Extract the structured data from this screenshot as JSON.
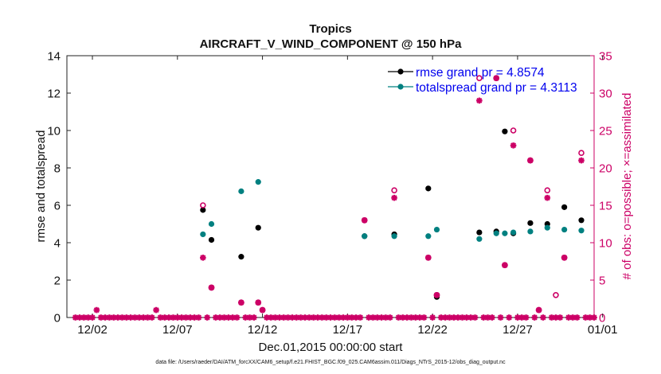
{
  "chart_data": {
    "type": "scatter",
    "title": "Tropics",
    "subtitle": "AIRCRAFT_V_WIND_COMPONENT @ 150 hPa",
    "xlabel": "Dec.01,2015 00:00:00 start",
    "ylabel_left": "rmse and totalspread",
    "ylabel_right": "# of obs: o=possible; ×=assimilated",
    "ylim_left": [
      0,
      14
    ],
    "ylim_right": [
      0,
      35
    ],
    "xlim": [
      0.5,
      31.5
    ],
    "yticks_left": [
      0,
      2,
      4,
      6,
      8,
      10,
      12,
      14
    ],
    "yticks_right": [
      0,
      5,
      10,
      15,
      20,
      25,
      30,
      35
    ],
    "xticks": [
      {
        "x": 2,
        "label": "12/02"
      },
      {
        "x": 7,
        "label": "12/07"
      },
      {
        "x": 12,
        "label": "12/12"
      },
      {
        "x": 17,
        "label": "12/17"
      },
      {
        "x": 22,
        "label": "12/22"
      },
      {
        "x": 27,
        "label": "12/27"
      },
      {
        "x": 32,
        "label": "01/01"
      }
    ],
    "legend": {
      "placement": "top-right",
      "entries": [
        "rmse grand pr = 4.8574",
        "totalspread grand pr = 4.3113"
      ]
    },
    "series": [
      {
        "name": "rmse",
        "axis": "left",
        "color": "#000000",
        "points": [
          [
            8.5,
            5.75
          ],
          [
            9.0,
            4.15
          ],
          [
            10.75,
            3.25
          ],
          [
            11.75,
            4.8
          ],
          [
            18.0,
            4.35
          ],
          [
            19.75,
            4.45
          ],
          [
            21.75,
            6.9
          ],
          [
            22.25,
            1.1
          ],
          [
            24.75,
            4.55
          ],
          [
            25.75,
            4.6
          ],
          [
            26.25,
            9.95
          ],
          [
            26.75,
            4.5
          ],
          [
            27.75,
            5.05
          ],
          [
            28.75,
            5.0
          ],
          [
            29.75,
            5.9
          ],
          [
            30.75,
            5.2
          ]
        ]
      },
      {
        "name": "totalspread",
        "axis": "left",
        "color": "#008080",
        "points": [
          [
            8.5,
            4.45
          ],
          [
            9.0,
            5.0
          ],
          [
            10.75,
            6.75
          ],
          [
            11.75,
            7.25
          ],
          [
            18.0,
            4.35
          ],
          [
            19.75,
            4.35
          ],
          [
            21.75,
            4.35
          ],
          [
            22.25,
            4.7
          ],
          [
            24.75,
            4.2
          ],
          [
            25.75,
            4.5
          ],
          [
            26.25,
            4.5
          ],
          [
            26.75,
            4.55
          ],
          [
            27.75,
            4.6
          ],
          [
            28.75,
            4.8
          ],
          [
            29.75,
            4.7
          ],
          [
            30.75,
            4.65
          ]
        ]
      },
      {
        "name": "obs possible",
        "axis": "right",
        "color": "#cc0066",
        "points": [
          [
            8.5,
            15
          ],
          [
            9.0,
            4
          ],
          [
            10.75,
            2
          ],
          [
            11.75,
            2
          ],
          [
            12.0,
            1
          ],
          [
            18.0,
            13
          ],
          [
            19.75,
            17
          ],
          [
            21.75,
            8
          ],
          [
            22.25,
            3
          ],
          [
            24.75,
            32
          ],
          [
            25.75,
            32
          ],
          [
            26.25,
            7
          ],
          [
            26.75,
            25
          ],
          [
            27.75,
            21
          ],
          [
            28.25,
            1
          ],
          [
            28.75,
            17
          ],
          [
            29.25,
            3
          ],
          [
            29.75,
            8
          ],
          [
            30.75,
            22
          ]
        ]
      },
      {
        "name": "obs assimilated",
        "axis": "right",
        "color": "#cc0066",
        "points": [
          [
            1,
            0
          ],
          [
            1.25,
            0
          ],
          [
            1.5,
            0
          ],
          [
            1.75,
            0
          ],
          [
            2,
            0
          ],
          [
            2.25,
            1
          ],
          [
            2.5,
            0
          ],
          [
            2.75,
            0
          ],
          [
            3,
            0
          ],
          [
            3.25,
            0
          ],
          [
            3.5,
            0
          ],
          [
            3.75,
            0
          ],
          [
            4,
            0
          ],
          [
            4.25,
            0
          ],
          [
            4.5,
            0
          ],
          [
            4.75,
            0
          ],
          [
            5,
            0
          ],
          [
            5.25,
            0
          ],
          [
            5.5,
            0
          ],
          [
            5.75,
            1
          ],
          [
            6,
            0
          ],
          [
            6.25,
            0
          ],
          [
            6.5,
            0
          ],
          [
            6.75,
            0
          ],
          [
            7,
            0
          ],
          [
            7.25,
            0
          ],
          [
            7.5,
            0
          ],
          [
            7.75,
            0
          ],
          [
            8,
            0
          ],
          [
            8.25,
            0
          ],
          [
            8.5,
            8
          ],
          [
            8.75,
            0
          ],
          [
            9,
            4
          ],
          [
            9.25,
            0
          ],
          [
            9.5,
            0
          ],
          [
            9.75,
            0
          ],
          [
            10,
            0
          ],
          [
            10.25,
            0
          ],
          [
            10.5,
            0
          ],
          [
            10.75,
            2
          ],
          [
            11,
            0
          ],
          [
            11.25,
            0
          ],
          [
            11.5,
            0
          ],
          [
            11.75,
            2
          ],
          [
            12,
            1
          ],
          [
            12.25,
            0
          ],
          [
            12.5,
            0
          ],
          [
            12.75,
            0
          ],
          [
            13,
            0
          ],
          [
            13.25,
            0
          ],
          [
            13.5,
            0
          ],
          [
            13.75,
            0
          ],
          [
            14,
            0
          ],
          [
            14.25,
            0
          ],
          [
            14.5,
            0
          ],
          [
            14.75,
            0
          ],
          [
            15,
            0
          ],
          [
            15.25,
            0
          ],
          [
            15.5,
            0
          ],
          [
            15.75,
            0
          ],
          [
            16,
            0
          ],
          [
            16.25,
            0
          ],
          [
            16.5,
            0
          ],
          [
            16.75,
            0
          ],
          [
            17,
            0
          ],
          [
            17.25,
            0
          ],
          [
            17.5,
            0
          ],
          [
            17.75,
            0
          ],
          [
            18,
            13
          ],
          [
            18.25,
            0
          ],
          [
            18.5,
            0
          ],
          [
            18.75,
            0
          ],
          [
            19,
            0
          ],
          [
            19.25,
            0
          ],
          [
            19.5,
            0
          ],
          [
            19.75,
            16
          ],
          [
            20,
            0
          ],
          [
            20.25,
            0
          ],
          [
            20.5,
            0
          ],
          [
            20.75,
            0
          ],
          [
            21,
            0
          ],
          [
            21.25,
            0
          ],
          [
            21.5,
            0
          ],
          [
            21.75,
            8
          ],
          [
            22,
            0
          ],
          [
            22.25,
            3
          ],
          [
            22.5,
            0
          ],
          [
            22.75,
            0
          ],
          [
            23,
            0
          ],
          [
            23.25,
            0
          ],
          [
            23.5,
            0
          ],
          [
            23.75,
            0
          ],
          [
            24,
            0
          ],
          [
            24.25,
            0
          ],
          [
            24.5,
            0
          ],
          [
            24.75,
            29
          ],
          [
            25,
            0
          ],
          [
            25.25,
            0
          ],
          [
            25.5,
            0
          ],
          [
            25.75,
            32
          ],
          [
            26,
            0
          ],
          [
            26.25,
            7
          ],
          [
            26.5,
            0
          ],
          [
            26.75,
            23
          ],
          [
            27,
            0
          ],
          [
            27.25,
            0
          ],
          [
            27.5,
            0
          ],
          [
            27.75,
            21
          ],
          [
            28,
            0
          ],
          [
            28.25,
            1
          ],
          [
            28.5,
            0
          ],
          [
            28.75,
            16
          ],
          [
            29,
            0
          ],
          [
            29.25,
            0
          ],
          [
            29.5,
            0
          ],
          [
            29.75,
            8
          ],
          [
            30,
            0
          ],
          [
            30.25,
            0
          ],
          [
            30.5,
            0
          ],
          [
            30.75,
            21
          ],
          [
            31,
            0
          ],
          [
            31.25,
            0
          ],
          [
            31.5,
            0
          ]
        ]
      }
    ]
  },
  "footer": "data file: /Users/raeder/DAI/ATM_forcXX/CAM6_setup/f.e21.FHIST_BGC.f09_025.CAM6assim.011/Diags_NTrS_2015-12/obs_diag_output.nc",
  "colors": {
    "rmse": "#000000",
    "spread": "#008080",
    "obs": "#cc0066",
    "legend_text": "#0000ee"
  }
}
